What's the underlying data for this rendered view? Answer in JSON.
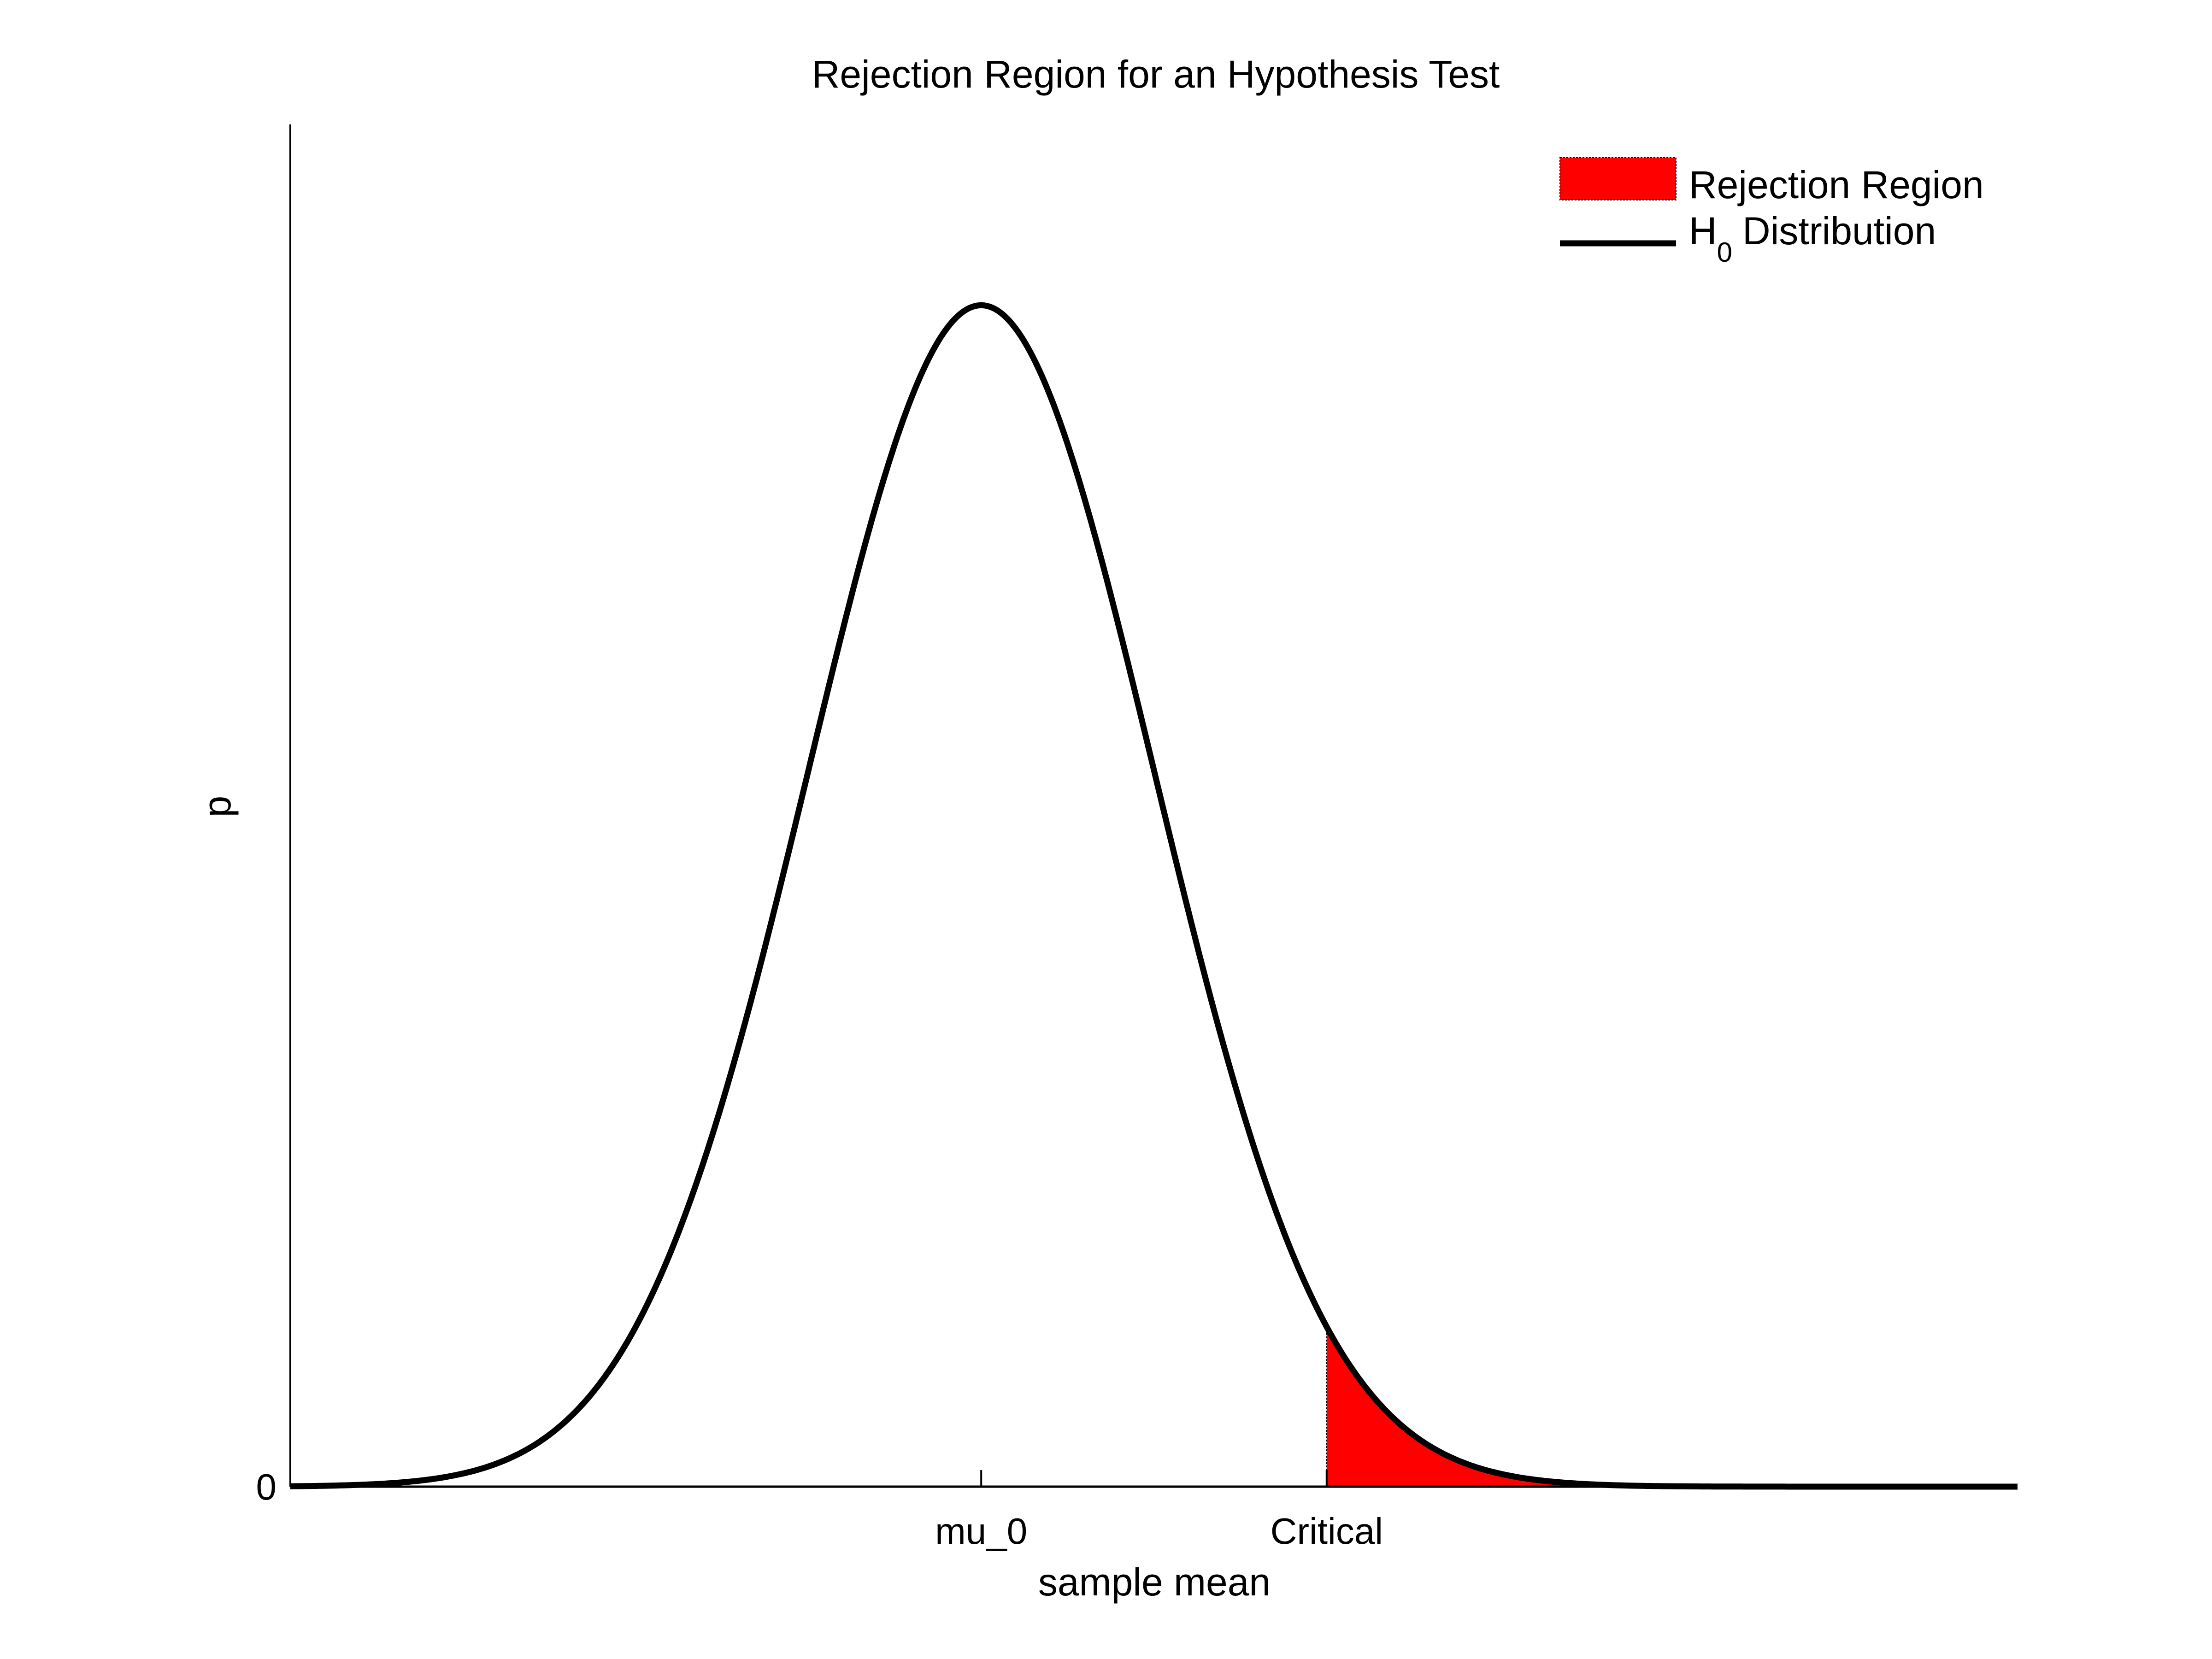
{
  "chart_data": {
    "type": "area",
    "title": "Rejection Region for an Hypothesis Test",
    "xlabel": "sample mean",
    "ylabel": "p",
    "xlim": [
      -4,
      6
    ],
    "ylim": [
      0,
      0.46
    ],
    "x_ticks": [
      {
        "value": 0,
        "label": "mu_0"
      },
      {
        "value": 2,
        "label": "Critical"
      }
    ],
    "y_ticks": [
      {
        "value": 0,
        "label": "0"
      }
    ],
    "grid": false,
    "legend_position": "top-right",
    "series": [
      {
        "name": "H",
        "name_subscript": "0",
        "name_suffix": "Distribution",
        "kind": "line",
        "distribution": "normal",
        "mean": 0,
        "sd": 1,
        "peak_density": 0.399,
        "color": "#000000"
      },
      {
        "name": "Rejection Region",
        "kind": "area",
        "from_x": 2,
        "to_x": 6,
        "color": "#ff0000"
      }
    ]
  }
}
